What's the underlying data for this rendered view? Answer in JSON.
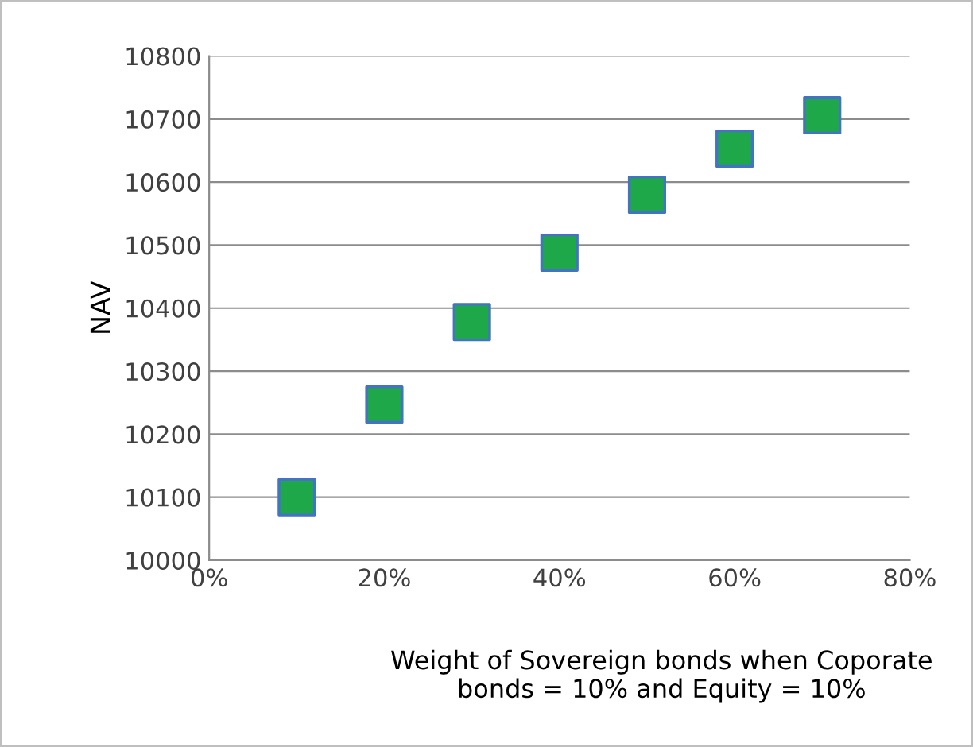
{
  "chart_data": {
    "type": "scatter",
    "xlabel": "Weight of Sovereign bonds when Coporate bonds = 10% and Equity = 10%",
    "ylabel": "NAV",
    "x": [
      10,
      20,
      30,
      40,
      50,
      60,
      70
    ],
    "series": [
      {
        "color": "#1fa84a",
        "values": [
          10100,
          10247,
          10378,
          10488,
          10580,
          10653,
          10706
        ]
      }
    ],
    "xlim": [
      0,
      80
    ],
    "xticks": [
      {
        "value": 0,
        "label": "0%"
      },
      {
        "value": 20,
        "label": "20%"
      },
      {
        "value": 40,
        "label": "40%"
      },
      {
        "value": 60,
        "label": "60%"
      },
      {
        "value": 80,
        "label": "80%"
      }
    ],
    "ylim": [
      10000,
      10800
    ],
    "yticks": [
      10000,
      10100,
      10200,
      10300,
      10400,
      10500,
      10600,
      10700,
      10800
    ],
    "grid": "y",
    "marker": "square",
    "legend": false
  }
}
